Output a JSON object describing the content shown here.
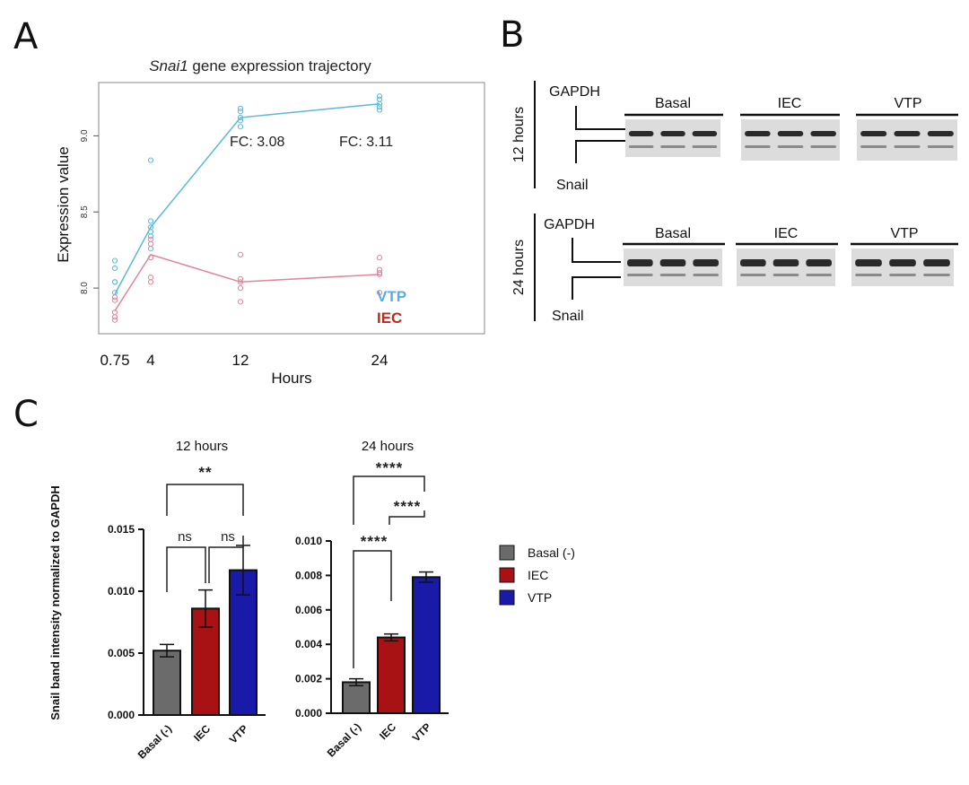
{
  "panels": {
    "A": "A",
    "B": "B",
    "C": "C"
  },
  "panelA": {
    "title_italic": "Snai1",
    "title_rest": " gene expression trajectory",
    "ylabel": "Expression value",
    "xlabel": "Hours",
    "fc1": "FC: 3.08",
    "fc2": "FC:  3.11",
    "legend_vtp": "VTP",
    "legend_iec": "IEC"
  },
  "panelB": {
    "row1_time": "12 hours",
    "row2_time": "24 hours",
    "gapdh": "GAPDH",
    "snail": "Snail",
    "groups": [
      "Basal",
      "IEC",
      "VTP"
    ]
  },
  "panelC": {
    "ylabel": "Snail band intensity normalized to GAPDH",
    "left_title": "12 hours",
    "right_title": "24 hours",
    "sig_left": [
      "**",
      "ns",
      "ns"
    ],
    "sig_right": [
      "****",
      "****",
      "****"
    ],
    "legend": [
      "Basal (-)",
      "IEC",
      "VTP"
    ]
  },
  "colors": {
    "vtp_line": "#5bb8dc",
    "iec_line": "#e0879a",
    "vtp_text": "#55b0e0",
    "iec_text": "#c0281c",
    "bar_basal": "#6b6b6b",
    "bar_iec": "#a81214",
    "bar_vtp": "#1a1aa8"
  },
  "chart_data": [
    {
      "type": "line",
      "title": "Snai1 gene expression trajectory",
      "xlabel": "Hours",
      "ylabel": "Expression value",
      "x": [
        0.75,
        4,
        12,
        24
      ],
      "x_tick_labels": [
        "0.75",
        "4",
        "12",
        "24"
      ],
      "y_ticks": [
        "8.0",
        "8.5",
        "9.0"
      ],
      "ylim": [
        7.7,
        9.35
      ],
      "series": [
        {
          "name": "VTP",
          "values": [
            7.96,
            8.4,
            9.12,
            9.21
          ],
          "points": [
            [
              0.75,
              8.18
            ],
            [
              0.75,
              8.13
            ],
            [
              0.75,
              8.04
            ],
            [
              0.75,
              8.04
            ],
            [
              0.75,
              7.97
            ],
            [
              4,
              8.84
            ],
            [
              4,
              8.44
            ],
            [
              4,
              8.4
            ],
            [
              4,
              8.37
            ],
            [
              4,
              8.34
            ],
            [
              4,
              8.26
            ],
            [
              12,
              9.18
            ],
            [
              12,
              9.16
            ],
            [
              12,
              9.12
            ],
            [
              12,
              9.1
            ],
            [
              12,
              9.06
            ],
            [
              24,
              9.26
            ],
            [
              24,
              9.24
            ],
            [
              24,
              9.21
            ],
            [
              24,
              9.19
            ],
            [
              24,
              9.17
            ]
          ]
        },
        {
          "name": "IEC",
          "values": [
            7.85,
            8.22,
            8.04,
            8.09
          ],
          "points": [
            [
              0.75,
              7.94
            ],
            [
              0.75,
              7.92
            ],
            [
              0.75,
              7.84
            ],
            [
              0.75,
              7.81
            ],
            [
              0.75,
              7.79
            ],
            [
              4,
              8.32
            ],
            [
              4,
              8.29
            ],
            [
              4,
              8.2
            ],
            [
              4,
              8.07
            ],
            [
              4,
              8.04
            ],
            [
              12,
              8.22
            ],
            [
              12,
              8.06
            ],
            [
              12,
              8.04
            ],
            [
              12,
              8.0
            ],
            [
              12,
              7.91
            ],
            [
              24,
              8.2
            ],
            [
              24,
              8.12
            ],
            [
              24,
              8.1
            ],
            [
              24,
              8.09
            ],
            [
              24,
              7.97
            ]
          ]
        }
      ],
      "annotations": [
        "FC: 3.08",
        "FC:  3.11"
      ]
    },
    {
      "type": "bar",
      "title": "12 hours",
      "categories": [
        "Basal (-)",
        "IEC",
        "VTP"
      ],
      "values": [
        0.0052,
        0.0086,
        0.0117
      ],
      "errors": [
        0.0005,
        0.0015,
        0.002
      ],
      "ylabel": "Snail band intensity normalized to GAPDH",
      "ylim": [
        0,
        0.015
      ],
      "y_ticks": [
        "0.000",
        "0.005",
        "0.010",
        "0.015"
      ]
    },
    {
      "type": "bar",
      "title": "24 hours",
      "categories": [
        "Basal (-)",
        "IEC",
        "VTP"
      ],
      "values": [
        0.0018,
        0.0044,
        0.0079
      ],
      "errors": [
        0.0002,
        0.0002,
        0.0003
      ],
      "ylim": [
        0,
        0.01
      ],
      "y_ticks": [
        "0.000",
        "0.002",
        "0.004",
        "0.006",
        "0.008",
        "0.010"
      ]
    }
  ]
}
